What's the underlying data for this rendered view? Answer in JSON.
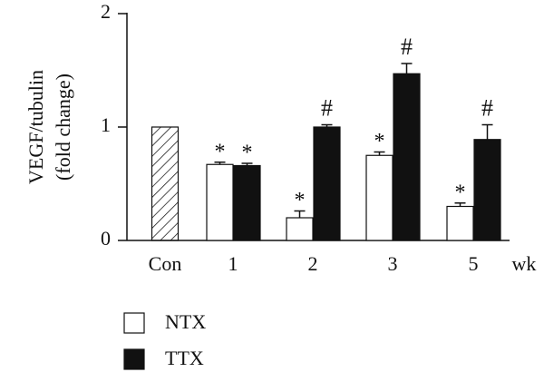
{
  "chart_data": {
    "type": "bar",
    "ylabel": [
      "VEGF/tubulin",
      "(fold change)"
    ],
    "xlabel": "wk",
    "categories": [
      "Con",
      "1",
      "2",
      "3",
      "5"
    ],
    "control_value": 1,
    "series": [
      {
        "name": "NTX",
        "color": "#ffffff",
        "values": [
          null,
          0.67,
          0.2,
          0.75,
          0.3
        ],
        "errors": [
          null,
          0.02,
          0.06,
          0.03,
          0.03
        ],
        "annotations": [
          null,
          "*",
          "*",
          "*",
          "*"
        ]
      },
      {
        "name": "TTX",
        "color": "#111111",
        "values": [
          null,
          0.66,
          1.0,
          1.47,
          0.89
        ],
        "errors": [
          null,
          0.02,
          0.02,
          0.09,
          0.13
        ],
        "annotations": [
          null,
          "*",
          "#",
          "#",
          "#"
        ]
      }
    ],
    "ylim": [
      0,
      2
    ],
    "yticks": [
      0,
      1,
      2
    ]
  }
}
